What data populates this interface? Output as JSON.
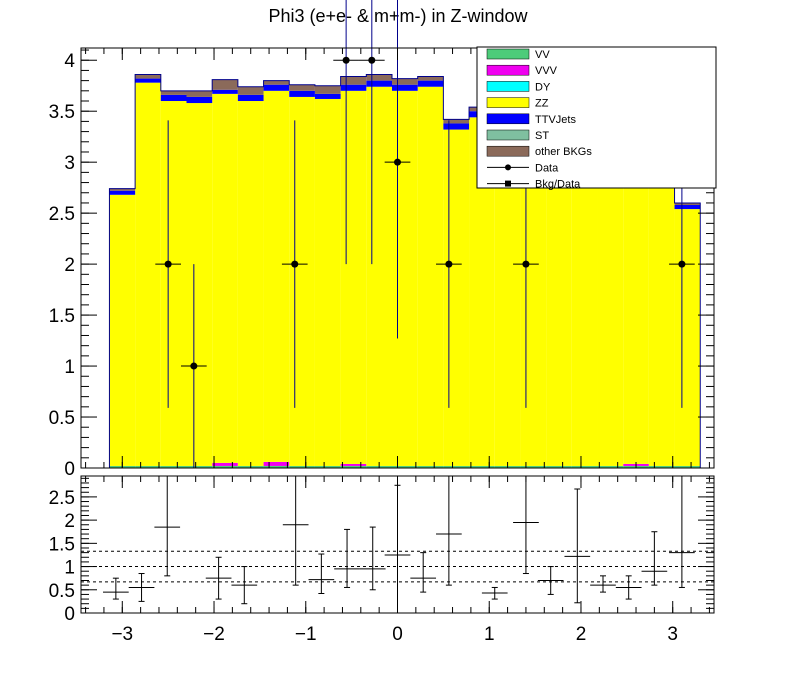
{
  "title": "Phi3 (e+e- & m+m-) in Z-window",
  "colors": {
    "VV": "#4dcc7a",
    "VVV": "#f000f0",
    "DY": "#00ffff",
    "ZZ": "#ffff00",
    "TTVJets": "#0000ff",
    "ST": "#7fbfa0",
    "other BKGs": "#8b6a5a",
    "frame": "#000000"
  },
  "chart_data": [
    {
      "type": "bar",
      "panel": "main",
      "stacked": true,
      "xlim": [
        -3.45,
        3.45
      ],
      "ylim": [
        0,
        4.12
      ],
      "x_ticks": [
        -3,
        -2,
        -1,
        0,
        1,
        2,
        3
      ],
      "x_tick_labels": [
        "−3",
        "−2",
        "−1",
        "0",
        "1",
        "2",
        "3"
      ],
      "y_ticks": [
        0,
        0.5,
        1,
        1.5,
        2,
        2.5,
        3,
        3.5,
        4
      ],
      "y_tick_labels": [
        "0",
        "0.5",
        "1",
        "1.5",
        "2",
        "2.5",
        "3",
        "3.5",
        "4"
      ],
      "bin_edges": [
        -3.14,
        -2.86,
        -2.58,
        -2.3,
        -2.02,
        -1.74,
        -1.46,
        -1.18,
        -0.9,
        -0.62,
        -0.34,
        -0.06,
        0.22,
        0.5,
        0.78,
        1.06,
        1.34,
        1.62,
        1.9,
        2.18,
        2.46,
        2.74,
        3.02,
        3.3
      ],
      "series": [
        {
          "name": "VV",
          "values": [
            0.02,
            0.02,
            0.02,
            0.02,
            0.02,
            0.02,
            0.02,
            0.02,
            0.02,
            0.02,
            0.02,
            0.02,
            0.02,
            0.02,
            0.02,
            0.02,
            0.02,
            0.02,
            0.02,
            0.02,
            0.02,
            0.02,
            0.02
          ]
        },
        {
          "name": "VVV",
          "values": [
            0.0,
            0.0,
            0.0,
            0.0,
            0.03,
            0.0,
            0.04,
            0.0,
            0.0,
            0.02,
            0.0,
            0.0,
            0.0,
            0.0,
            0.0,
            0.0,
            0.0,
            0.0,
            0.0,
            0.0,
            0.02,
            0.0,
            0.0
          ]
        },
        {
          "name": "DY",
          "values": [
            0.0,
            0.0,
            0.0,
            0.0,
            0.0,
            0.0,
            0.0,
            0.0,
            0.0,
            0.0,
            0.0,
            0.0,
            0.0,
            0.0,
            0.0,
            0.0,
            0.0,
            0.0,
            0.0,
            0.0,
            0.0,
            0.0,
            0.0
          ]
        },
        {
          "name": "ZZ",
          "values": [
            2.66,
            3.76,
            3.58,
            3.56,
            3.62,
            3.58,
            3.64,
            3.62,
            3.6,
            3.66,
            3.72,
            3.68,
            3.72,
            3.3,
            3.42,
            3.3,
            3.3,
            3.3,
            3.3,
            3.3,
            3.3,
            3.3,
            2.52
          ]
        },
        {
          "name": "TTVJets",
          "values": [
            0.04,
            0.04,
            0.06,
            0.06,
            0.04,
            0.06,
            0.06,
            0.06,
            0.05,
            0.06,
            0.06,
            0.06,
            0.06,
            0.06,
            0.06,
            0.06,
            0.06,
            0.06,
            0.06,
            0.06,
            0.06,
            0.06,
            0.04
          ]
        },
        {
          "name": "ST",
          "values": [
            0.0,
            0.0,
            0.0,
            0.0,
            0.0,
            0.0,
            0.0,
            0.0,
            0.0,
            0.0,
            0.0,
            0.0,
            0.0,
            0.0,
            0.0,
            0.0,
            0.0,
            0.0,
            0.0,
            0.0,
            0.0,
            0.0,
            0.0
          ]
        },
        {
          "name": "other BKGs",
          "values": [
            0.02,
            0.04,
            0.04,
            0.06,
            0.1,
            0.08,
            0.04,
            0.06,
            0.08,
            0.08,
            0.06,
            0.06,
            0.04,
            0.04,
            0.04,
            0.04,
            0.04,
            0.04,
            0.04,
            0.04,
            0.04,
            0.04,
            0.02
          ]
        }
      ],
      "data_points": {
        "name": "Data",
        "x": [
          -2.5,
          -2.22,
          -1.12,
          -0.56,
          -0.28,
          0.0,
          0.56,
          1.4,
          3.1
        ],
        "y": [
          2,
          1,
          2,
          4,
          4,
          3,
          2,
          2,
          2
        ],
        "x_err": 0.14,
        "y_err_low": [
          1.41,
          1.0,
          1.41,
          2.0,
          2.0,
          1.73,
          1.41,
          1.41,
          1.41
        ],
        "y_err_high": [
          1.41,
          1.0,
          1.41,
          2.0,
          2.0,
          1.73,
          1.41,
          1.41,
          1.41
        ]
      },
      "legend_position": "top-right"
    },
    {
      "type": "scatter",
      "panel": "ratio",
      "xlim": [
        -3.45,
        3.45
      ],
      "ylim": [
        0,
        2.95
      ],
      "x_ticks": [
        -3,
        -2,
        -1,
        0,
        1,
        2,
        3
      ],
      "x_tick_labels": [
        "−3",
        "−2",
        "−1",
        "0",
        "1",
        "2",
        "3"
      ],
      "y_ticks": [
        0,
        0.5,
        1,
        1.5,
        2,
        2.5
      ],
      "y_tick_labels": [
        "0",
        "0.5",
        "1",
        "1.5",
        "2",
        "2.5"
      ],
      "reference_lines": [
        0.67,
        1.0,
        1.33
      ],
      "series": [
        {
          "name": "Bkg/Data",
          "x": [
            -3.07,
            -2.79,
            -2.51,
            -1.95,
            -1.67,
            -1.11,
            -0.83,
            -0.55,
            -0.27,
            -0.0,
            0.28,
            0.56,
            1.06,
            1.4,
            1.67,
            1.96,
            2.24,
            2.52,
            2.8,
            3.1
          ],
          "y": [
            0.45,
            0.55,
            1.85,
            0.75,
            0.6,
            1.9,
            0.72,
            0.95,
            0.95,
            1.25,
            0.75,
            1.7,
            0.43,
            1.95,
            0.7,
            1.22,
            0.6,
            0.55,
            0.9,
            1.3
          ],
          "x_err": 0.14,
          "y_err_low": [
            0.15,
            0.3,
            1.05,
            0.45,
            0.4,
            1.3,
            0.3,
            0.4,
            0.45,
            1.25,
            0.3,
            1.1,
            0.13,
            1.1,
            0.3,
            1.0,
            0.15,
            0.25,
            0.3,
            0.75
          ],
          "y_err_high": [
            0.3,
            0.3,
            1.1,
            0.45,
            0.4,
            1.1,
            0.55,
            0.85,
            0.9,
            1.5,
            0.55,
            1.25,
            0.12,
            1.0,
            0.3,
            1.45,
            0.2,
            0.25,
            0.85,
            1.65
          ]
        }
      ]
    }
  ]
}
